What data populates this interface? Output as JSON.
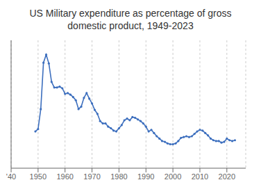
{
  "chart_data": {
    "type": "line",
    "title": "US Military expenditure as percentage of gross\ndomestic product, 1949-2023",
    "x": [
      1949,
      1950,
      1951,
      1952,
      1953,
      1954,
      1955,
      1956,
      1957,
      1958,
      1959,
      1960,
      1961,
      1962,
      1963,
      1964,
      1965,
      1966,
      1967,
      1968,
      1969,
      1970,
      1971,
      1972,
      1973,
      1974,
      1975,
      1976,
      1977,
      1978,
      1979,
      1980,
      1981,
      1982,
      1983,
      1984,
      1985,
      1986,
      1987,
      1988,
      1989,
      1990,
      1991,
      1992,
      1993,
      1994,
      1995,
      1996,
      1997,
      1998,
      1999,
      2000,
      2001,
      2002,
      2003,
      2004,
      2005,
      2006,
      2007,
      2008,
      2009,
      2010,
      2011,
      2012,
      2013,
      2014,
      2015,
      2016,
      2017,
      2018,
      2019,
      2020,
      2021,
      2022,
      2023
    ],
    "values": [
      4.6,
      4.9,
      7.4,
      13.2,
      14.2,
      13.1,
      10.8,
      10.1,
      10.1,
      10.2,
      10.0,
      9.3,
      9.4,
      9.2,
      8.9,
      8.5,
      7.4,
      7.7,
      8.8,
      9.4,
      8.7,
      8.1,
      7.3,
      6.8,
      5.9,
      5.6,
      5.6,
      5.2,
      5.0,
      4.7,
      4.6,
      5.0,
      5.4,
      6.0,
      6.2,
      6.0,
      6.4,
      6.3,
      6.1,
      5.9,
      5.6,
      5.2,
      4.6,
      4.8,
      4.4,
      4.0,
      3.7,
      3.4,
      3.3,
      3.1,
      3.0,
      3.0,
      3.1,
      3.4,
      3.8,
      3.9,
      4.0,
      3.9,
      4.0,
      4.3,
      4.6,
      4.8,
      4.7,
      4.4,
      4.1,
      3.7,
      3.5,
      3.4,
      3.4,
      3.2,
      3.3,
      3.7,
      3.5,
      3.4,
      3.5
    ],
    "color": "#3d6fbe",
    "marker": "circle",
    "xlim": [
      1940,
      2027
    ],
    "xticks": [
      {
        "value": 1940,
        "label": "'40"
      },
      1950,
      1960,
      1970,
      1980,
      1990,
      2000,
      2010,
      2020
    ],
    "ylim": [
      0,
      16
    ],
    "grid": true,
    "tick_labels": "x"
  }
}
